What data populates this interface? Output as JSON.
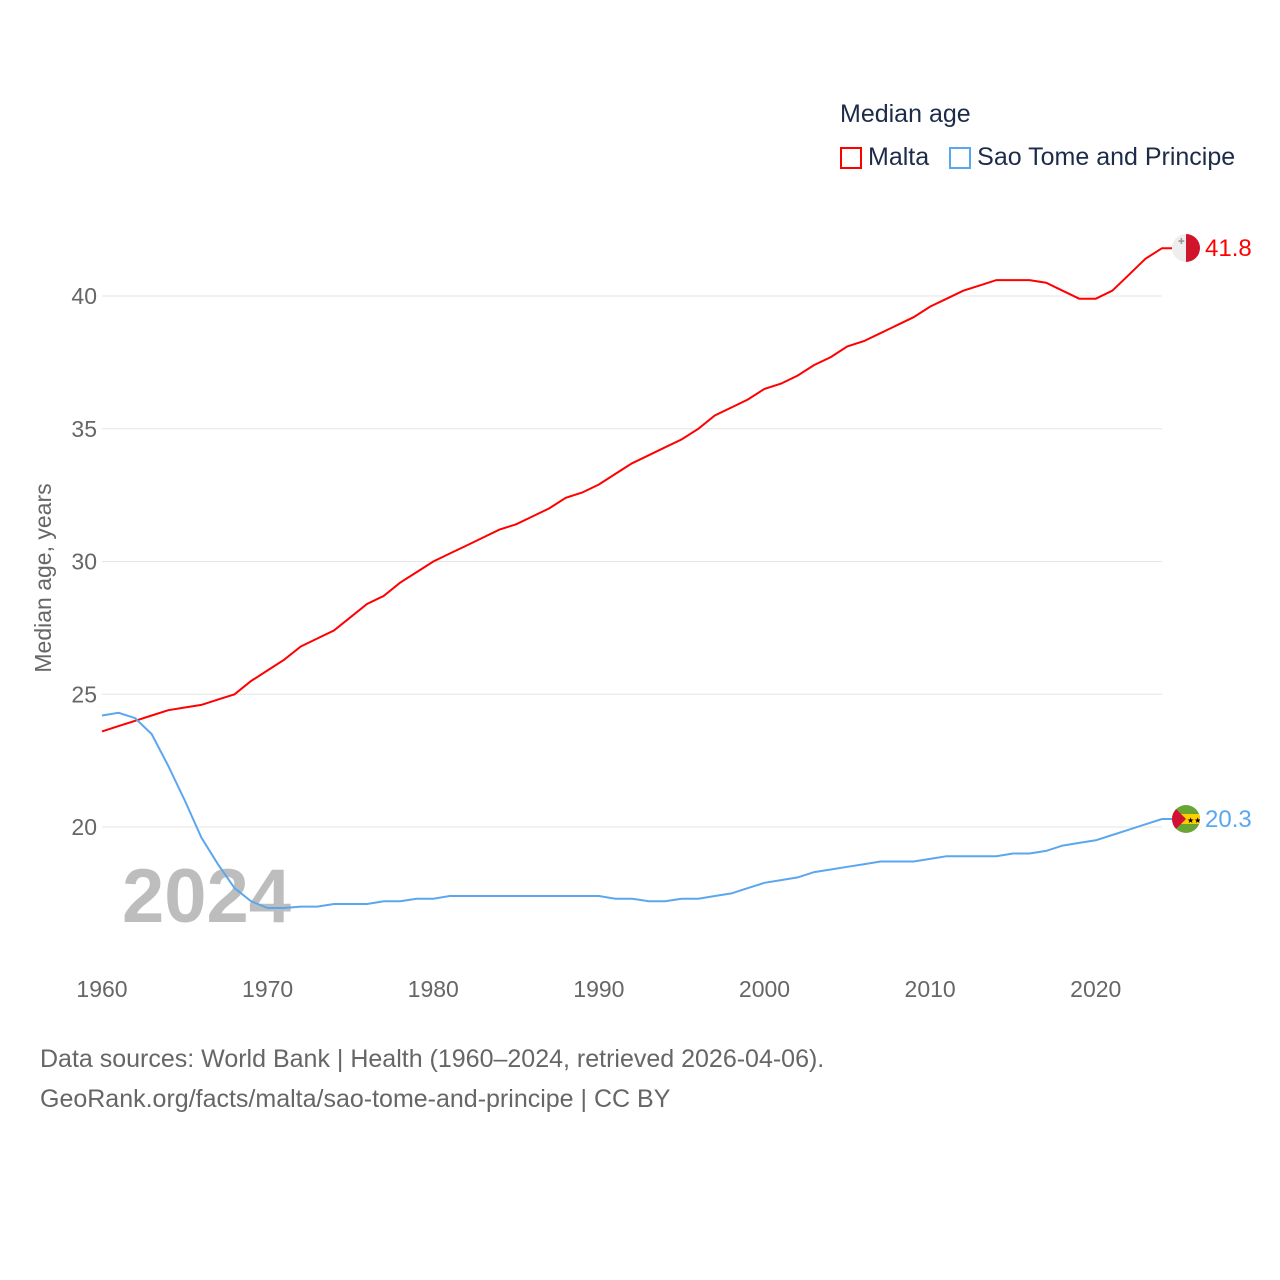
{
  "chart_data": {
    "type": "line",
    "title": "Median age",
    "xlabel": "",
    "ylabel": "Median age, years",
    "xlim": [
      1960,
      2024
    ],
    "ylim": [
      16,
      42
    ],
    "x_ticks": [
      "1960",
      "1970",
      "1980",
      "1990",
      "2000",
      "2010",
      "2020"
    ],
    "y_ticks": [
      "20",
      "25",
      "30",
      "35",
      "40"
    ],
    "grid": true,
    "legend_position": "top-right",
    "year_watermark": "2024",
    "series": [
      {
        "name": "Malta",
        "color": "#ff0000",
        "end_label": "41.8",
        "x": [
          1960,
          1961,
          1962,
          1963,
          1964,
          1965,
          1966,
          1967,
          1968,
          1969,
          1970,
          1971,
          1972,
          1973,
          1974,
          1975,
          1976,
          1977,
          1978,
          1979,
          1980,
          1981,
          1982,
          1983,
          1984,
          1985,
          1986,
          1987,
          1988,
          1989,
          1990,
          1991,
          1992,
          1993,
          1994,
          1995,
          1996,
          1997,
          1998,
          1999,
          2000,
          2001,
          2002,
          2003,
          2004,
          2005,
          2006,
          2007,
          2008,
          2009,
          2010,
          2011,
          2012,
          2013,
          2014,
          2015,
          2016,
          2017,
          2018,
          2019,
          2020,
          2021,
          2022,
          2023,
          2024
        ],
        "values": [
          23.6,
          23.8,
          24.0,
          24.2,
          24.4,
          24.5,
          24.6,
          24.8,
          25.0,
          25.5,
          25.9,
          26.3,
          26.8,
          27.1,
          27.4,
          27.9,
          28.4,
          28.7,
          29.2,
          29.6,
          30.0,
          30.3,
          30.6,
          30.9,
          31.2,
          31.4,
          31.7,
          32.0,
          32.4,
          32.6,
          32.9,
          33.3,
          33.7,
          34.0,
          34.3,
          34.6,
          35.0,
          35.5,
          35.8,
          36.1,
          36.5,
          36.7,
          37.0,
          37.4,
          37.7,
          38.1,
          38.3,
          38.6,
          38.9,
          39.2,
          39.6,
          39.9,
          40.2,
          40.4,
          40.6,
          40.6,
          40.6,
          40.5,
          40.2,
          39.9,
          39.9,
          40.2,
          40.8,
          41.4,
          41.8
        ]
      },
      {
        "name": "Sao Tome and Principe",
        "color": "#5ba7ef",
        "end_label": "20.3",
        "x": [
          1960,
          1961,
          1962,
          1963,
          1964,
          1965,
          1966,
          1967,
          1968,
          1969,
          1970,
          1971,
          1972,
          1973,
          1974,
          1975,
          1976,
          1977,
          1978,
          1979,
          1980,
          1981,
          1982,
          1983,
          1984,
          1985,
          1986,
          1987,
          1988,
          1989,
          1990,
          1991,
          1992,
          1993,
          1994,
          1995,
          1996,
          1997,
          1998,
          1999,
          2000,
          2001,
          2002,
          2003,
          2004,
          2005,
          2006,
          2007,
          2008,
          2009,
          2010,
          2011,
          2012,
          2013,
          2014,
          2015,
          2016,
          2017,
          2018,
          2019,
          2020,
          2021,
          2022,
          2023,
          2024
        ],
        "values": [
          24.2,
          24.3,
          24.1,
          23.5,
          22.3,
          21.0,
          19.6,
          18.6,
          17.7,
          17.2,
          16.95,
          16.95,
          17.0,
          17.0,
          17.1,
          17.1,
          17.1,
          17.2,
          17.2,
          17.3,
          17.3,
          17.4,
          17.4,
          17.4,
          17.4,
          17.4,
          17.4,
          17.4,
          17.4,
          17.4,
          17.4,
          17.3,
          17.3,
          17.2,
          17.2,
          17.3,
          17.3,
          17.4,
          17.5,
          17.7,
          17.9,
          18.0,
          18.1,
          18.3,
          18.4,
          18.5,
          18.6,
          18.7,
          18.7,
          18.7,
          18.8,
          18.9,
          18.9,
          18.9,
          18.9,
          19.0,
          19.0,
          19.1,
          19.3,
          19.4,
          19.5,
          19.7,
          19.9,
          20.1,
          20.3
        ]
      }
    ]
  },
  "legend": {
    "title": "Median age",
    "items": [
      "Malta",
      "Sao Tome and Principe"
    ]
  },
  "footer": {
    "line1": "Data sources: World Bank | Health (1960–2024, retrieved 2026-04-06).",
    "line2": "GeoRank.org/facts/malta/sao-tome-and-principe | CC BY"
  }
}
